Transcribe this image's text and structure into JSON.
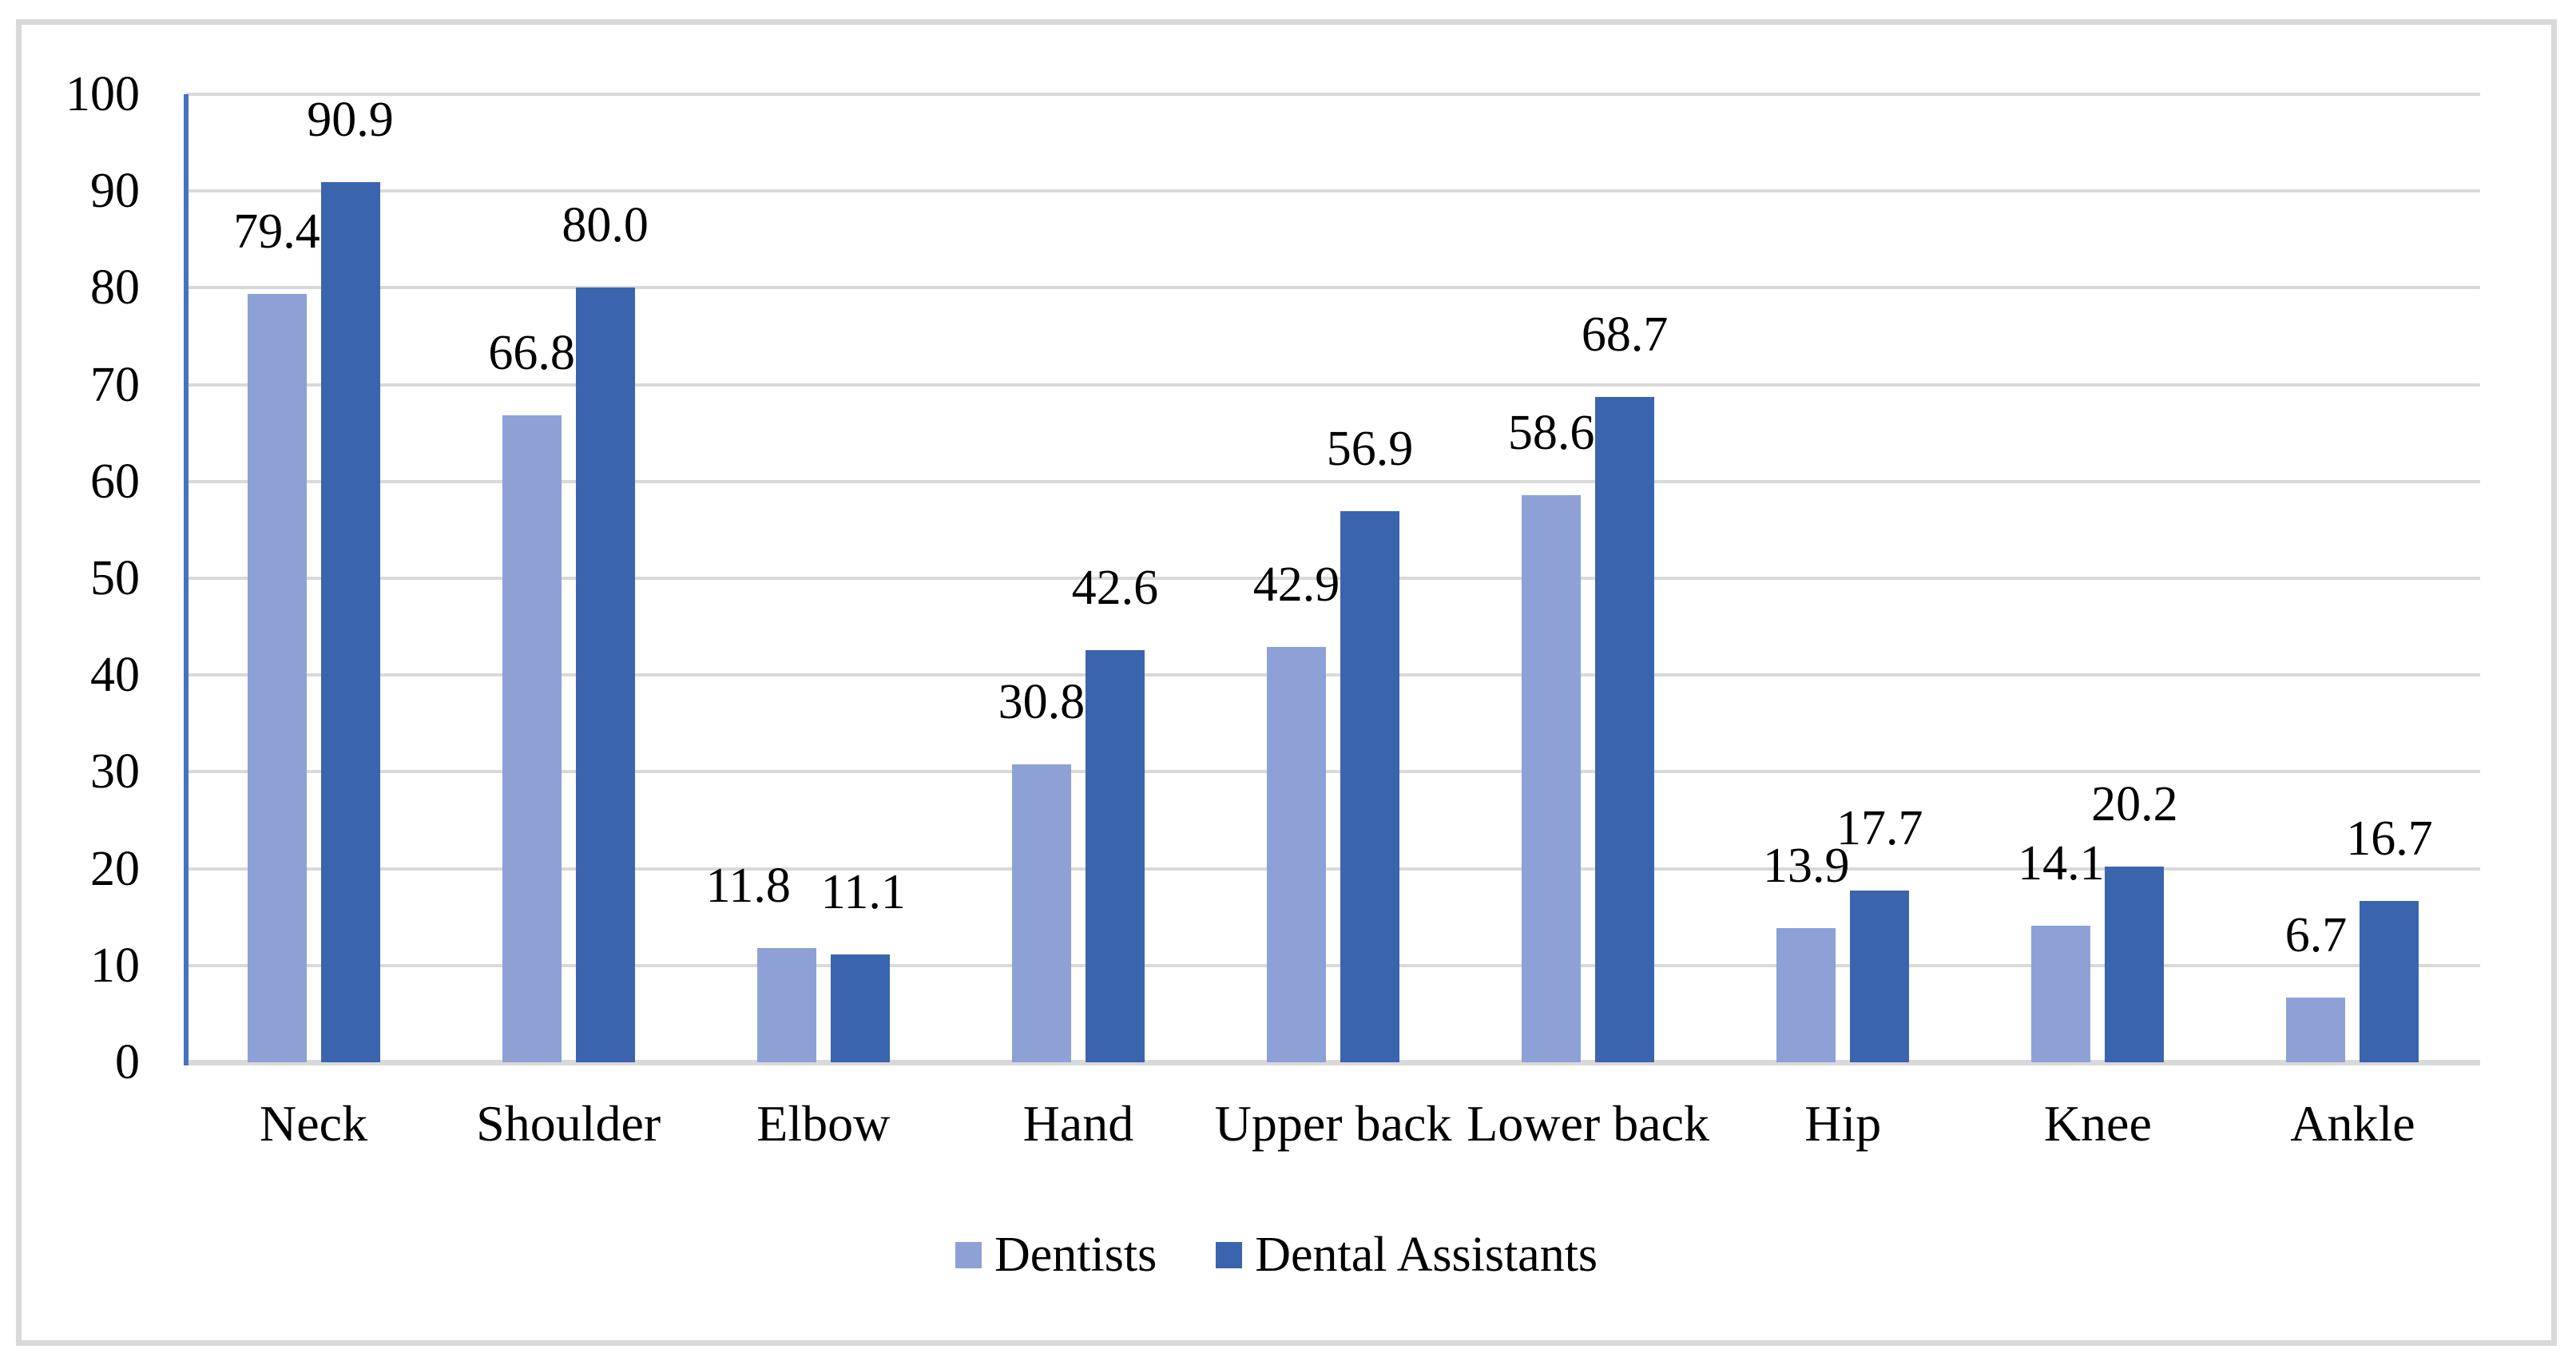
{
  "chart_data": {
    "type": "bar",
    "title": "",
    "xlabel": "",
    "ylabel": "",
    "categories": [
      "Neck",
      "Shoulder",
      "Elbow",
      "Hand",
      "Upper back",
      "Lower back",
      "Hip",
      "Knee",
      "Ankle"
    ],
    "series": [
      {
        "name": "Dentists",
        "color": "#8EA1D6",
        "values": [
          79.4,
          66.8,
          11.8,
          30.8,
          42.9,
          58.6,
          13.9,
          14.1,
          6.7
        ],
        "label_dx": [
          0,
          0,
          -48,
          0,
          0,
          0,
          0,
          0,
          0
        ]
      },
      {
        "name": "Dental Assistants",
        "color": "#3A64AE",
        "values": [
          90.9,
          80.0,
          11.1,
          42.6,
          56.9,
          68.7,
          17.7,
          20.2,
          16.7
        ],
        "label_dx": [
          0,
          0,
          4,
          0,
          0,
          0,
          0,
          0,
          0
        ]
      }
    ],
    "ylim": [
      0,
      100
    ],
    "yticks": [
      0,
      10,
      20,
      30,
      40,
      50,
      60,
      70,
      80,
      90,
      100
    ],
    "grid": true,
    "data_labels": true,
    "data_label_decimals": 1,
    "legend_position": "bottom",
    "colors": {
      "gridline": "#D9D9D9",
      "baseline": "#D9D9D9",
      "y_axis_line": "#4472C4",
      "frame_border": "#D9D9D9",
      "text": "#000000",
      "background": "#FFFFFF"
    }
  }
}
